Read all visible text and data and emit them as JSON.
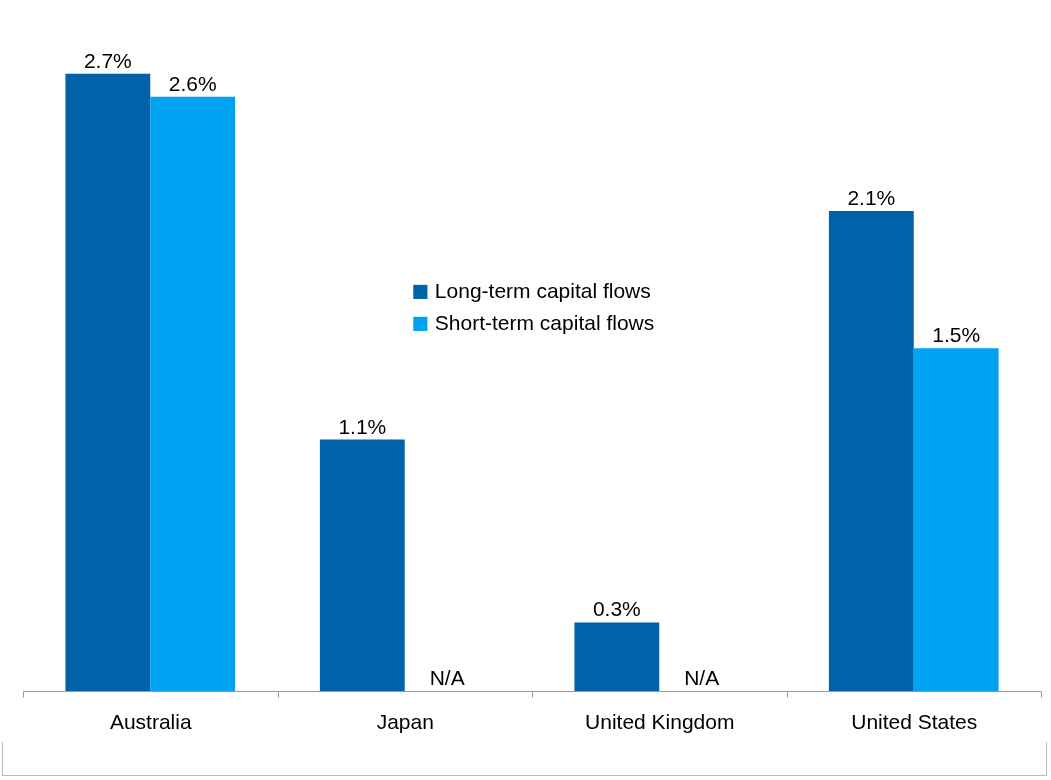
{
  "chart_data": {
    "type": "bar",
    "categories": [
      "Australia",
      "Japan",
      "United Kingdom",
      "United States"
    ],
    "series": [
      {
        "name": "Long-term capital flows",
        "color": "#0062a8",
        "values": [
          2.7,
          1.1,
          0.3,
          2.1
        ],
        "value_labels": [
          "2.7%",
          "1.1%",
          "0.3%",
          "2.1%"
        ]
      },
      {
        "name": "Short-term capital flows",
        "color": "#00a2f2",
        "values": [
          2.6,
          null,
          null,
          1.5
        ],
        "value_labels": [
          "2.6%",
          "N/A",
          "N/A",
          "1.5%"
        ]
      }
    ],
    "legend": "top",
    "grid": false
  }
}
